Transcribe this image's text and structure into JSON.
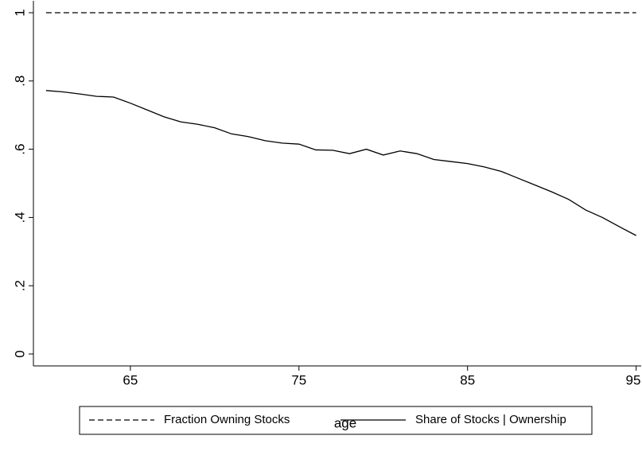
{
  "chart_data": {
    "type": "line",
    "x_label": "age",
    "x": [
      60,
      61,
      62,
      63,
      64,
      65,
      66,
      67,
      68,
      69,
      70,
      71,
      72,
      73,
      74,
      75,
      76,
      77,
      78,
      79,
      80,
      81,
      82,
      83,
      84,
      85,
      86,
      87,
      88,
      89,
      90,
      91,
      92,
      93,
      94,
      95
    ],
    "series": [
      {
        "name": "Fraction Owning Stocks",
        "color": "#000000",
        "style": "dashed",
        "values": [
          1,
          1,
          1,
          1,
          1,
          1,
          1,
          1,
          1,
          1,
          1,
          1,
          1,
          1,
          1,
          1,
          1,
          1,
          1,
          1,
          1,
          1,
          1,
          1,
          1,
          1,
          1,
          1,
          1,
          1,
          1,
          1,
          1,
          1,
          1,
          1
        ]
      },
      {
        "name": "Share of Stocks | Ownership",
        "color": "#000000",
        "style": "solid",
        "values": [
          0.772,
          0.768,
          0.762,
          0.755,
          0.753,
          0.735,
          0.715,
          0.695,
          0.68,
          0.673,
          0.663,
          0.645,
          0.637,
          0.625,
          0.618,
          0.615,
          0.598,
          0.597,
          0.587,
          0.6,
          0.583,
          0.595,
          0.587,
          0.57,
          0.564,
          0.558,
          0.548,
          0.535,
          0.515,
          0.495,
          0.475,
          0.453,
          0.422,
          0.4,
          0.373,
          0.347
        ]
      }
    ],
    "xlim": [
      59.25,
      95.3
    ],
    "xticks": [
      65,
      75,
      85,
      95
    ],
    "ylim": [
      -0.035,
      1.035
    ],
    "yticks": [
      0,
      {
        "value": 0.2,
        "label": ".2"
      },
      {
        "value": 0.4,
        "label": ".4"
      },
      {
        "value": 0.6,
        "label": ".6"
      },
      {
        "value": 0.8,
        "label": ".8"
      },
      1
    ],
    "legend": "bottom"
  }
}
